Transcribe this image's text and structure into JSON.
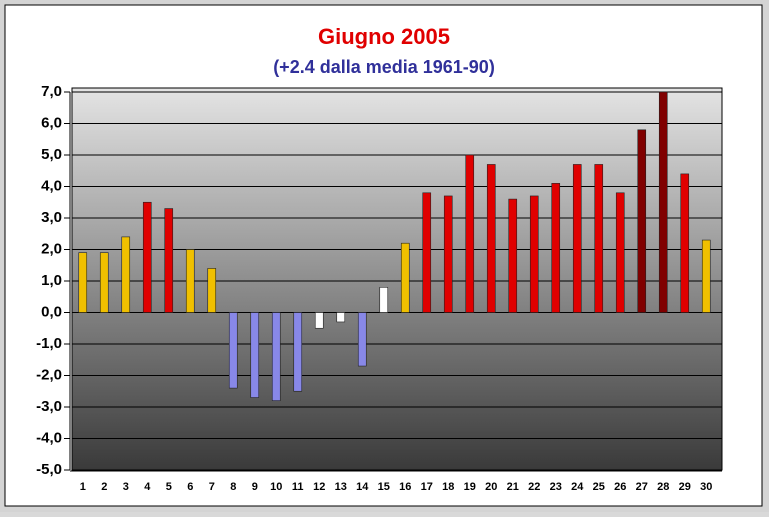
{
  "chart_data": {
    "type": "bar",
    "title": "Giugno 2005",
    "subtitle": "(+2.4 dalla media 1961-90)",
    "categories": [
      "1",
      "2",
      "3",
      "4",
      "5",
      "6",
      "7",
      "8",
      "9",
      "10",
      "11",
      "12",
      "13",
      "14",
      "15",
      "16",
      "17",
      "18",
      "19",
      "20",
      "21",
      "22",
      "23",
      "24",
      "25",
      "26",
      "27",
      "28",
      "29",
      "30"
    ],
    "values": [
      1.9,
      1.9,
      2.4,
      3.5,
      3.3,
      2.0,
      1.4,
      -2.4,
      -2.7,
      -2.8,
      -2.5,
      -0.5,
      -0.3,
      -1.7,
      0.8,
      2.2,
      3.8,
      3.7,
      5.0,
      4.7,
      3.6,
      3.7,
      4.1,
      4.7,
      4.7,
      3.8,
      5.8,
      7.0,
      4.4,
      2.3
    ],
    "colors": [
      "#f0c000",
      "#f0c000",
      "#f0c000",
      "#e00000",
      "#e00000",
      "#f0c000",
      "#f0c000",
      "#8888e8",
      "#8888e8",
      "#8888e8",
      "#8888e8",
      "#ffffff",
      "#ffffff",
      "#8888e8",
      "#ffffff",
      "#f0c000",
      "#e00000",
      "#e00000",
      "#e00000",
      "#e00000",
      "#e00000",
      "#e00000",
      "#e00000",
      "#e00000",
      "#e00000",
      "#e00000",
      "#800000",
      "#800000",
      "#e00000",
      "#f0c000"
    ],
    "ylim": [
      -5,
      7
    ],
    "yticks": [
      {
        "value": -5,
        "label": "-5,0"
      },
      {
        "value": -4,
        "label": "-4,0"
      },
      {
        "value": -3,
        "label": "-3,0"
      },
      {
        "value": -2,
        "label": "-2,0"
      },
      {
        "value": -1,
        "label": "-1,0"
      },
      {
        "value": 0,
        "label": "0,0"
      },
      {
        "value": 1,
        "label": "1,0"
      },
      {
        "value": 2,
        "label": "2,0"
      },
      {
        "value": 3,
        "label": "3,0"
      },
      {
        "value": 4,
        "label": "4,0"
      },
      {
        "value": 5,
        "label": "5,0"
      },
      {
        "value": 6,
        "label": "6,0"
      },
      {
        "value": 7,
        "label": "7,0"
      }
    ],
    "grid": true
  }
}
